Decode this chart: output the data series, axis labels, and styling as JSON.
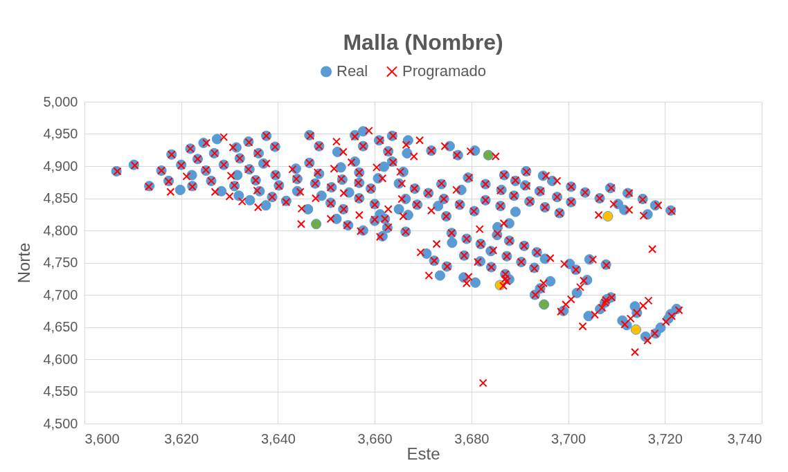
{
  "chart_data": {
    "type": "scatter",
    "title": "Malla (Nombre)",
    "xlabel": "Este",
    "ylabel": "Norte",
    "xlim": [
      3600,
      3740
    ],
    "ylim": [
      4500,
      5000
    ],
    "xticks": [
      {
        "value": 3600,
        "label": "3,600"
      },
      {
        "value": 3620,
        "label": "3,620"
      },
      {
        "value": 3640,
        "label": "3,640"
      },
      {
        "value": 3660,
        "label": "3,660"
      },
      {
        "value": 3680,
        "label": "3,680"
      },
      {
        "value": 3700,
        "label": "3,700"
      },
      {
        "value": 3720,
        "label": "3,720"
      },
      {
        "value": 3740,
        "label": "3,740"
      }
    ],
    "yticks": [
      {
        "value": 4500,
        "label": "4,500"
      },
      {
        "value": 4550,
        "label": "4,550"
      },
      {
        "value": 4600,
        "label": "4,600"
      },
      {
        "value": 4650,
        "label": "4,650"
      },
      {
        "value": 4700,
        "label": "4,700"
      },
      {
        "value": 4750,
        "label": "4,750"
      },
      {
        "value": 4800,
        "label": "4,800"
      },
      {
        "value": 4850,
        "label": "4,850"
      },
      {
        "value": 4900,
        "label": "4,900"
      },
      {
        "value": 4950,
        "label": "4,950"
      },
      {
        "value": 5000,
        "label": "5,000"
      }
    ],
    "grid": true,
    "legend": "top",
    "series": [
      {
        "name": "Real",
        "color": "#5b9bd5",
        "marker": "circle",
        "x": [
          3606.6,
          3610.2,
          3613.4,
          3615.9,
          3617.4,
          3618.0,
          3619.8,
          3620,
          3622.2,
          3622.3,
          3621.9,
          3623.4,
          3624.6,
          3627.4,
          3625.1,
          3626.2,
          3628.3,
          3626.8,
          3628.8,
          3631.4,
          3631.6,
          3631,
          3631.9,
          3632.1,
          3633.9,
          3634.2,
          3634.1,
          3635.4,
          3636.2,
          3636,
          3637.6,
          3637.5,
          3637,
          3638.8,
          3639.5,
          3639.4,
          3640.2,
          3641.7,
          3643.7,
          3644,
          3644,
          3646.2,
          3646.5,
          3646.5,
          3648.5,
          3648.5,
          3647.7,
          3649,
          3652.3,
          3653.3,
          3651.1,
          3654.7,
          3652.1,
          3653.5,
          3654.5,
          3650.9,
          3657.6,
          3656.8,
          3655.9,
          3653,
          3656.8,
          3656.8,
          3655.9,
          3657.6,
          3657.6,
          3659.2,
          3660,
          3661.1,
          3662.1,
          3662.6,
          3661.6,
          3660,
          3660.9,
          3661.9,
          3660.7,
          3663.6,
          3663.6,
          3662.8,
          3665.9,
          3665,
          3666.4,
          3665,
          3666.9,
          3666.4,
          3666.9,
          3666.7,
          3668.3,
          3668.8,
          3671.1,
          3671.7,
          3673.1,
          3674.3,
          3673.8,
          3674.8,
          3675.5,
          3677.2,
          3677.9,
          3677.6,
          3680.7,
          3680.6,
          3679.3,
          3682.9,
          3682.9,
          3686.2,
          3686.8,
          3686,
          3689.1,
          3688.8,
          3689.1,
          3687.8,
          3685.4,
          3685.3,
          3687.8,
          3675.9,
          3676,
          3679,
          3681.9,
          3684,
          3670.7,
          3691.3,
          3694.8,
          3696.7,
          3691.1,
          3694.1,
          3692,
          3697.7,
          3700.6,
          3695.2,
          3698.2,
          3700.6,
          3703.5,
          3706.5,
          3708.7,
          3710.3,
          3711.6,
          3712.3,
          3715.4,
          3716.4,
          3718,
          3721.2,
          3672.3,
          3674.9,
          3673.5,
          3678.5,
          3678.4,
          3680.8,
          3681.8,
          3684.1,
          3687.3,
          3687,
          3687.8,
          3690.3,
          3690.9,
          3693,
          3693.5,
          3695.2,
          3696.3,
          3694.2,
          3693.1,
          3700.3,
          3701.6,
          3704.4,
          3703.9,
          3701.8,
          3699,
          3704.2,
          3706.6,
          3708,
          3707.8,
          3708.8,
          3707.6,
          3711.2,
          3712.1,
          3713.8,
          3714.2,
          3716,
          3718.1,
          3719.1,
          3720.7,
          3721.2,
          3722.4
        ],
        "values": [
          4892,
          4902,
          4869,
          4893,
          4877,
          4918,
          4863,
          4902,
          4886,
          4869,
          4927,
          4911,
          4936,
          4942,
          4893,
          4877,
          4861,
          4920,
          4902,
          4929,
          4886,
          4869,
          4854,
          4912,
          4938,
          4847,
          4895,
          4878,
          4861,
          4920,
          4947,
          4839,
          4904,
          4852,
          4886,
          4930,
          4870,
          4846,
          4896,
          4880,
          4861,
          4833,
          4948,
          4905,
          4931,
          4888,
          4873,
          4854,
          4922,
          4879,
          4867,
          4859,
          4818,
          4833,
          4808,
          4843,
          4800,
          4850,
          4907,
          4898,
          4890,
          4874,
          4948,
          4954,
          4931,
          4865,
          4841,
          4825,
          4818,
          4804,
          4791,
          4815,
          4940,
          4899,
          4881,
          4907,
          4947,
          4923,
          4891,
          4873,
          4849,
          4833,
          4824,
          4798,
          4940,
          4920,
          4865,
          4840,
          4858,
          4924,
          4838,
          4849,
          4872,
          4822,
          4931,
          4917,
          4863,
          4840,
          4924,
          4830,
          4882,
          4872,
          4847,
          4863,
          4886,
          4838,
          4877,
          4854,
          4829,
          4811,
          4805,
          4793,
          4784,
          4796,
          4781,
          4787,
          4779,
          4768,
          4764,
          4892,
          4885,
          4877,
          4870,
          4861,
          4845,
          4852,
          4868,
          4836,
          4827,
          4844,
          4859,
          4850,
          4866,
          4841,
          4832,
          4858,
          4849,
          4825,
          4839,
          4831,
          4753,
          4744,
          4730,
          4761,
          4727,
          4719,
          4752,
          4743,
          4760,
          4732,
          4724,
          4751,
          4776,
          4742,
          4766,
          4756,
          4721,
          4710,
          4700,
          4748,
          4739,
          4755,
          4723,
          4703,
          4675,
          4667,
          4678,
          4693,
          4747,
          4696,
          4688,
          4660,
          4653,
          4682,
          4672,
          4635,
          4640,
          4649,
          4663,
          4670,
          4678
        ]
      },
      {
        "color": "#70ad47",
        "marker": "circle",
        "x": [
          3647.9,
          3683.5,
          3695
        ],
        "values": [
          4810,
          4917,
          4685
        ]
      },
      {
        "color": "#ffc000",
        "marker": "circle",
        "x": [
          3708.2,
          3685.9,
          3714
        ],
        "values": [
          4822,
          4715,
          4646
        ]
      },
      {
        "name": "Programado",
        "color": "#ff0000",
        "marker": "cross",
        "x": [
          3606.8,
          3610.4,
          3613.3,
          3615.9,
          3617.4,
          3618.0,
          3617.8,
          3620,
          3621.1,
          3622.3,
          3621.9,
          3623.4,
          3625.2,
          3628.8,
          3625.1,
          3626.2,
          3627,
          3626.9,
          3628.8,
          3630.7,
          3630.3,
          3631,
          3630,
          3632.1,
          3634,
          3632.6,
          3633.9,
          3635.4,
          3635.7,
          3635.8,
          3637.6,
          3635.9,
          3637.6,
          3638.8,
          3639.5,
          3639.4,
          3640.2,
          3641.7,
          3643,
          3643.8,
          3644.6,
          3644.9,
          3646.7,
          3646.5,
          3648.5,
          3648.2,
          3647.7,
          3647.8,
          3644.8,
          3652.1,
          3653.5,
          3653.1,
          3650.9,
          3653.6,
          3650.9,
          3653.6,
          3654.3,
          3650.9,
          3657.1,
          3656.8,
          3656.7,
          3655.2,
          3651.6,
          3656.8,
          3656.6,
          3655.9,
          3658.8,
          3657.6,
          3659.2,
          3660,
          3662.8,
          3662.1,
          3662.8,
          3661.1,
          3660,
          3661.1,
          3660.4,
          3661.6,
          3663.8,
          3663.8,
          3662.8,
          3665.3,
          3665.6,
          3665.6,
          3665.9,
          3666.4,
          3666.5,
          3668.1,
          3669.3,
          3668.2,
          3668.7,
          3671.1,
          3671.7,
          3671.7,
          3674.3,
          3673.8,
          3674.8,
          3674.5,
          3677,
          3676.9,
          3677.5,
          3679.8,
          3680.5,
          3679.5,
          3682.9,
          3682.9,
          3685,
          3686,
          3686.7,
          3686,
          3689.1,
          3688.8,
          3686.7,
          3685.4,
          3687.9,
          3681.7,
          3675.9,
          3672.8,
          3679,
          3681.9,
          3684.5,
          3669.5,
          3691.4,
          3695.4,
          3697.7,
          3691.4,
          3694.3,
          3692.1,
          3697.7,
          3700.6,
          3695.2,
          3698.2,
          3700.6,
          3703.5,
          3706.5,
          3708.9,
          3709.4,
          3712.6,
          3712.6,
          3715.4,
          3715.6,
          3718.6,
          3721.4,
          3717.4,
          3706.3,
          3672.3,
          3675,
          3671.2,
          3678.5,
          3679.4,
          3679,
          3681.3,
          3684.1,
          3687.3,
          3687,
          3687,
          3687.3,
          3686.6,
          3690.3,
          3690.9,
          3693,
          3693.6,
          3696.3,
          3694.9,
          3694.4,
          3693.2,
          3699.2,
          3701.6,
          3705.1,
          3703.2,
          3702.5,
          3700.6,
          3698.5,
          3699.5,
          3705.5,
          3707,
          3707.8,
          3707.9,
          3682.4,
          3703,
          3709,
          3707.6,
          3711.7,
          3712.9,
          3715.5,
          3714.2,
          3716.6,
          3713.8,
          3716.4,
          3717.9,
          3720.2,
          3721.4,
          3722.9
        ],
        "values": [
          4892,
          4901,
          4868,
          4893,
          4876,
          4918,
          4860,
          4901,
          4884,
          4868,
          4927,
          4911,
          4936,
          4945,
          4894,
          4877,
          4860,
          4920,
          4902,
          4929,
          4885,
          4870,
          4853,
          4912,
          4937,
          4845,
          4895,
          4878,
          4862,
          4920,
          4947,
          4836,
          4904,
          4852,
          4886,
          4930,
          4869,
          4844,
          4895,
          4880,
          4860,
          4834,
          4947,
          4905,
          4931,
          4890,
          4873,
          4850,
          4810,
          4938,
          4922,
          4880,
          4867,
          4858,
          4818,
          4833,
          4808,
          4842,
          4799,
          4824,
          4850,
          4906,
          4896,
          4890,
          4874,
          4946,
          4955,
          4931,
          4865,
          4840,
          4833,
          4818,
          4805,
          4790,
          4817,
          4940,
          4898,
          4881,
          4906,
          4947,
          4922,
          4891,
          4873,
          4849,
          4822,
          4798,
          4933,
          4915,
          4940,
          4865,
          4840,
          4858,
          4924,
          4831,
          4849,
          4873,
          4822,
          4931,
          4917,
          4863,
          4840,
          4923,
          4830,
          4882,
          4872,
          4847,
          4915,
          4862,
          4886,
          4838,
          4878,
          4854,
          4811,
          4795,
          4784,
          4802,
          4796,
          4779,
          4787,
          4779,
          4769,
          4766,
          4891,
          4885,
          4877,
          4869,
          4861,
          4845,
          4852,
          4868,
          4836,
          4827,
          4844,
          4859,
          4850,
          4866,
          4841,
          4832,
          4858,
          4848,
          4823,
          4839,
          4830,
          4771,
          4824,
          4753,
          4744,
          4730,
          4761,
          4728,
          4718,
          4751,
          4743,
          4760,
          4732,
          4725,
          4721,
          4714,
          4751,
          4776,
          4741,
          4766,
          4757,
          4718,
          4709,
          4700,
          4748,
          4739,
          4755,
          4722,
          4712,
          4693,
          4674,
          4685,
          4669,
          4680,
          4692,
          4746,
          4563,
          4651,
          4696,
          4688,
          4654,
          4663,
          4683,
          4672,
          4691,
          4611,
          4629,
          4640,
          4658,
          4667,
          4676
        ]
      }
    ]
  }
}
